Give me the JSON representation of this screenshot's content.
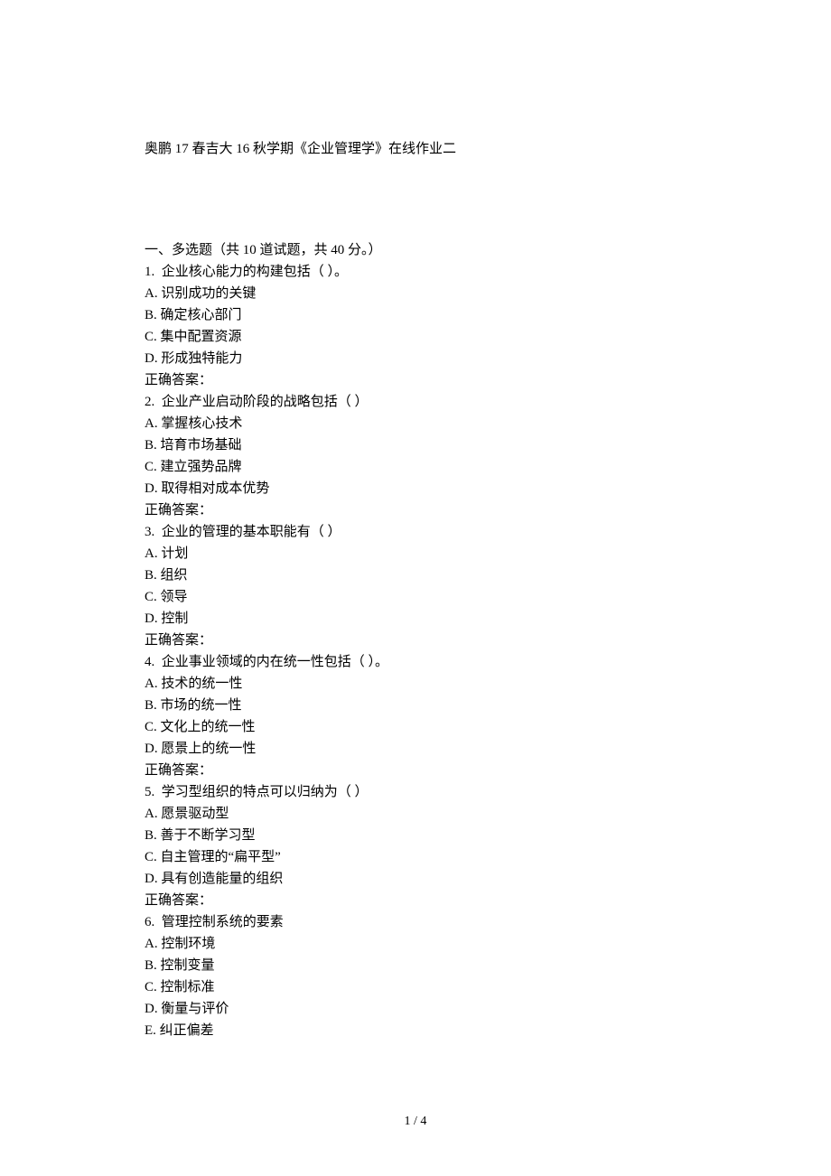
{
  "title": "奥鹏 17 春吉大 16 秋学期《企业管理学》在线作业二",
  "section_heading": "一、多选题（共 10 道试题，共 40 分。）",
  "questions": [
    {
      "number": "1.",
      "stem": "企业核心能力的构建包括（ ）。",
      "options": [
        "A. 识别成功的关键",
        "B. 确定核心部门",
        "C. 集中配置资源",
        "D. 形成独特能力"
      ],
      "answer_label": "正确答案："
    },
    {
      "number": "2.",
      "stem": "企业产业启动阶段的战略包括（ ）",
      "options": [
        "A. 掌握核心技术",
        "B. 培育市场基础",
        "C. 建立强势品牌",
        "D. 取得相对成本优势"
      ],
      "answer_label": "正确答案："
    },
    {
      "number": "3.",
      "stem": "企业的管理的基本职能有（ ）",
      "options": [
        "A. 计划",
        "B. 组织",
        "C. 领导",
        "D. 控制"
      ],
      "answer_label": "正确答案："
    },
    {
      "number": "4.",
      "stem": "企业事业领域的内在统一性包括（ ）。",
      "options": [
        "A. 技术的统一性",
        "B. 市场的统一性",
        "C. 文化上的统一性",
        "D. 愿景上的统一性"
      ],
      "answer_label": "正确答案："
    },
    {
      "number": "5.",
      "stem": "学习型组织的特点可以归纳为（ ）",
      "options": [
        "A. 愿景驱动型",
        "B. 善于不断学习型",
        "C. 自主管理的“扁平型”",
        "D. 具有创造能量的组织"
      ],
      "answer_label": "正确答案："
    },
    {
      "number": "6.",
      "stem": "管理控制系统的要素",
      "options": [
        "A. 控制环境",
        "B. 控制变量",
        "C. 控制标准",
        "D. 衡量与评价",
        "E. 纠正偏差"
      ],
      "answer_label": null
    }
  ],
  "footer": "1 / 4"
}
